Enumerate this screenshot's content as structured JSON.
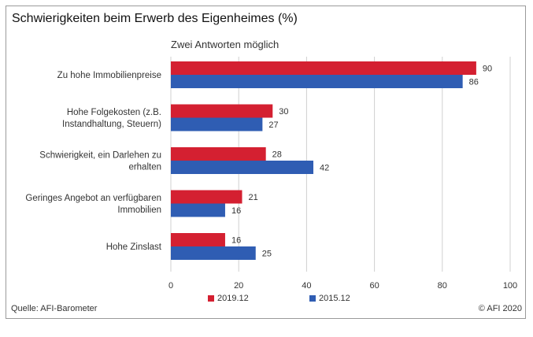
{
  "title": "Schwierigkeiten beim Erwerb des Eigenheimes (%)",
  "subtitle": "Zwei Antworten möglich",
  "source": "Quelle: AFI-Barometer",
  "copyright": "© AFI 2020",
  "colors": {
    "series_2019": "#d42031",
    "series_2015": "#2f5db3",
    "grid": "#d0d0d0"
  },
  "chart_data": {
    "type": "bar",
    "orientation": "horizontal",
    "title": "Schwierigkeiten beim Erwerb des Eigenheimes (%)",
    "subtitle": "Zwei Antworten möglich",
    "categories": [
      [
        "Zu hohe Immobilienpreise"
      ],
      [
        "Hohe Folgekosten (z.B.",
        "Instandhaltung, Steuern)"
      ],
      [
        "Schwierigkeit, ein Darlehen zu",
        "erhalten"
      ],
      [
        "Geringes Angebot an verfügbaren",
        "Immobilien"
      ],
      [
        "Hohe Zinslast"
      ]
    ],
    "series": [
      {
        "name": "2019.12",
        "values": [
          90,
          30,
          28,
          21,
          16
        ],
        "color": "#d42031"
      },
      {
        "name": "2015.12",
        "values": [
          86,
          27,
          42,
          16,
          25
        ],
        "color": "#2f5db3"
      }
    ],
    "xlim": [
      0,
      100
    ],
    "xticks": [
      0,
      20,
      40,
      60,
      80,
      100
    ],
    "grid": "vertical",
    "legend": "bottom-center",
    "data_labels": true
  }
}
